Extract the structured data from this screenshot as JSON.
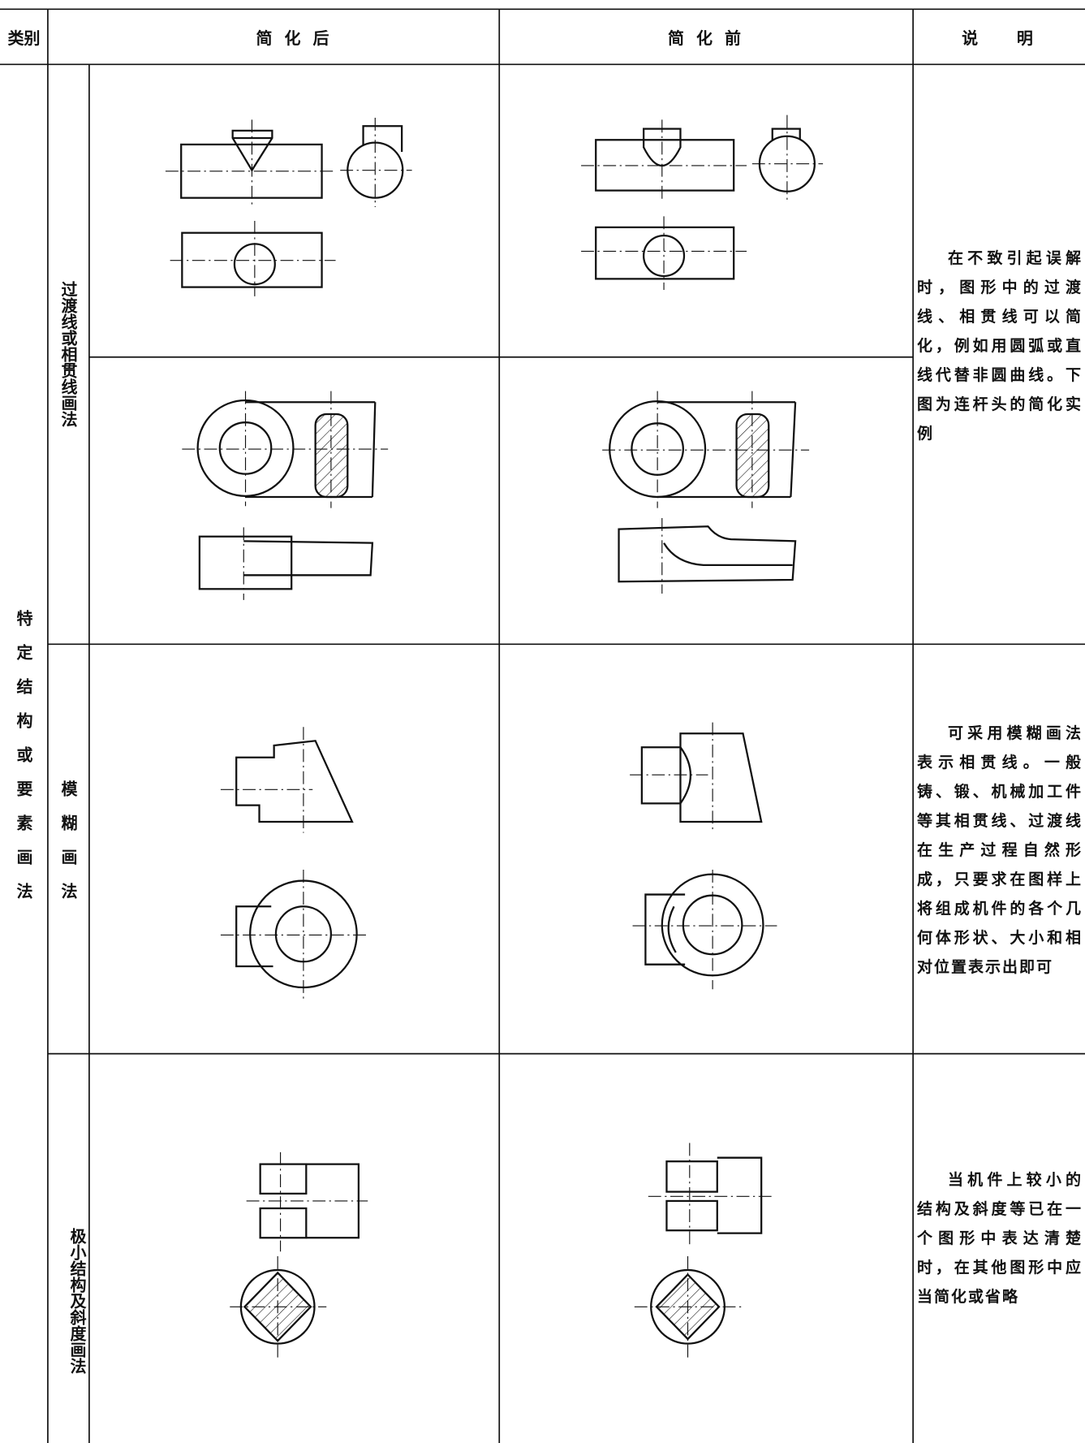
{
  "header": {
    "category": "类别",
    "after": "简 化 后",
    "before": "简 化 前",
    "note": "说    明"
  },
  "group": "特定结构或要素画法",
  "rows": [
    {
      "label": "过渡线或相贯线画法",
      "note": "在不致引起误解时，图形中的过渡线、相贯线可以简化，例如用圆弧或直线代替非圆曲线。下图为连杆头的简化实例"
    },
    {
      "label": "模糊画法",
      "note": "可采用模糊画法表示相贯线。一般铸、锻、机械加工件等其相贯线、过渡线在生产过程自然形成，只要求在图样上将组成机件的各个几何体形状、大小和相对位置表示出即可"
    },
    {
      "label": "极小结构及斜度画法",
      "note": "当机件上较小的结构及斜度等已在一个图形中表达清楚时，在其他图形中应当简化或省略"
    }
  ]
}
